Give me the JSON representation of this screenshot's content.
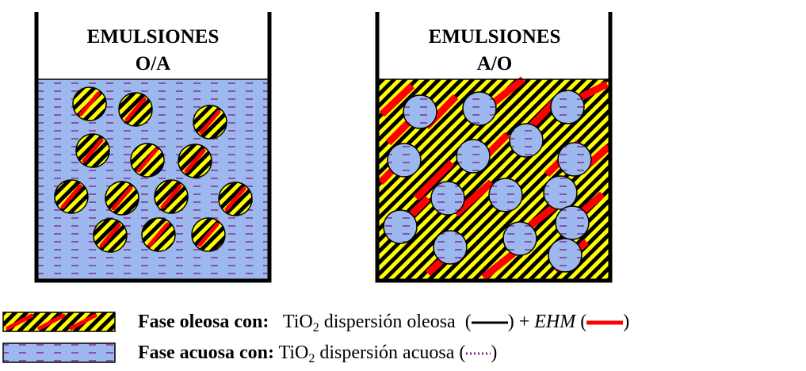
{
  "beakers": [
    {
      "title_line1": "EMULSIONES",
      "title_line2": "O/A",
      "continuous_phase": "aqueous",
      "droplet_phase": "oily"
    },
    {
      "title_line1": "EMULSIONES",
      "title_line2": "A/O",
      "continuous_phase": "oily",
      "droplet_phase": "aqueous"
    }
  ],
  "legend": {
    "oily": {
      "label": "Fase oleosa con:",
      "tio2": "TiO",
      "tio2_sub": "2",
      "dispersion": "dispersión oleosa",
      "plus": "+",
      "ehm": "EHM"
    },
    "aqueous": {
      "label": "Fase acuosa con:",
      "tio2": "TiO",
      "tio2_sub": "2",
      "dispersion": "dispersión acuosa"
    }
  },
  "colors": {
    "aqueous_fill": "#9db8ee",
    "aqueous_dash": "#7a1f7a",
    "oily_yellow": "#ffff00",
    "oily_black": "#000000",
    "ehm_red": "#ff0000"
  }
}
